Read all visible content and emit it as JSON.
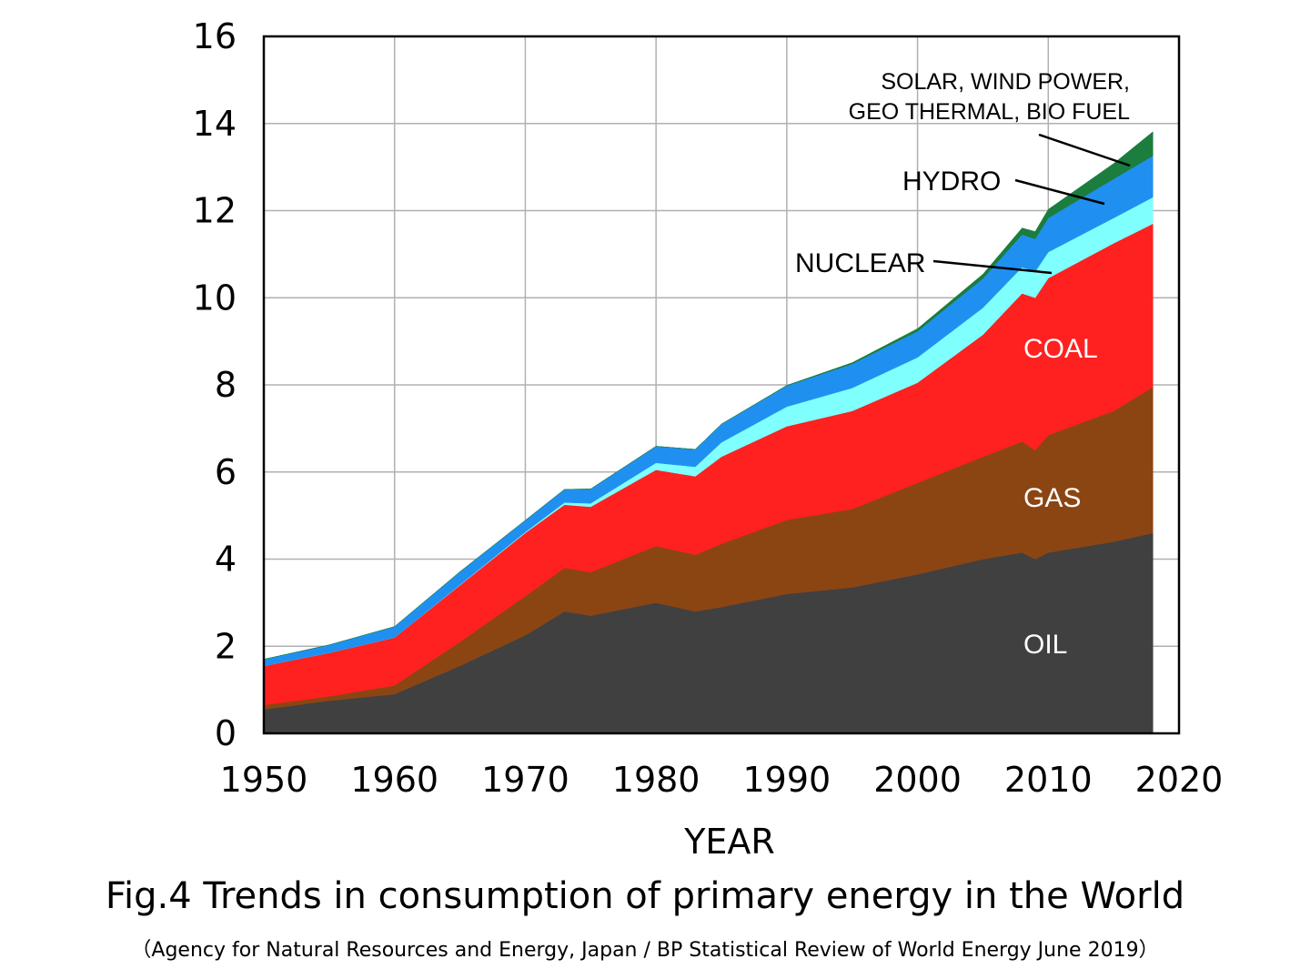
{
  "chart_data": {
    "type": "area",
    "stacked": true,
    "xlabel": "YEAR",
    "ylabel": "",
    "xlim": [
      1950,
      2020
    ],
    "ylim": [
      0,
      16
    ],
    "xticks": [
      1950,
      1960,
      1970,
      1980,
      1990,
      2000,
      2010,
      2020
    ],
    "yticks": [
      0,
      2,
      4,
      6,
      8,
      10,
      12,
      14,
      16
    ],
    "grid": true,
    "x": [
      1950,
      1955,
      1960,
      1965,
      1970,
      1973,
      1975,
      1980,
      1983,
      1985,
      1990,
      1995,
      2000,
      2005,
      2008,
      2009,
      2010,
      2015,
      2018
    ],
    "series": [
      {
        "name": "OIL",
        "color": "#404040",
        "values": [
          0.55,
          0.75,
          0.9,
          1.55,
          2.25,
          2.8,
          2.7,
          3.0,
          2.8,
          2.9,
          3.2,
          3.35,
          3.65,
          4.0,
          4.15,
          4.0,
          4.15,
          4.4,
          4.6
        ]
      },
      {
        "name": "GAS",
        "color": "#8B4513",
        "values": [
          0.1,
          0.1,
          0.2,
          0.55,
          0.9,
          1.0,
          1.0,
          1.3,
          1.3,
          1.45,
          1.7,
          1.8,
          2.1,
          2.35,
          2.55,
          2.5,
          2.7,
          3.0,
          3.35
        ]
      },
      {
        "name": "COAL",
        "color": "#FF2020",
        "values": [
          0.9,
          1.0,
          1.1,
          1.3,
          1.45,
          1.45,
          1.5,
          1.75,
          1.8,
          2.0,
          2.15,
          2.25,
          2.3,
          2.8,
          3.4,
          3.5,
          3.6,
          3.85,
          3.75
        ]
      },
      {
        "name": "NUCLEAR",
        "color": "#80FFFF",
        "values": [
          0.0,
          0.0,
          0.0,
          0.01,
          0.02,
          0.05,
          0.08,
          0.16,
          0.22,
          0.33,
          0.45,
          0.53,
          0.58,
          0.62,
          0.6,
          0.6,
          0.6,
          0.58,
          0.61
        ]
      },
      {
        "name": "HYDRO",
        "color": "#2090F0",
        "values": [
          0.15,
          0.18,
          0.25,
          0.3,
          0.27,
          0.3,
          0.33,
          0.38,
          0.4,
          0.42,
          0.48,
          0.55,
          0.6,
          0.67,
          0.75,
          0.75,
          0.78,
          0.9,
          0.95
        ]
      },
      {
        "name": "SOLAR, WIND POWER, GEO THERMAL, BIO FUEL",
        "color": "#1B7D3E",
        "values": [
          0.0,
          0.0,
          0.0,
          0.0,
          0.0,
          0.0,
          0.0,
          0.0,
          0.0,
          0.0,
          0.01,
          0.03,
          0.06,
          0.1,
          0.15,
          0.17,
          0.2,
          0.35,
          0.55
        ]
      }
    ],
    "labels": {
      "renew_line1": "SOLAR, WIND POWER,",
      "renew_line2": "GEO THERMAL, BIO FUEL",
      "hydro": "HYDRO",
      "nuclear": "NUCLEAR",
      "coal": "COAL",
      "gas": "GAS",
      "oil": "OIL"
    }
  },
  "caption": {
    "title": "Fig.4 Trends in consumption of primary energy in the World",
    "source": "（Agency for Natural Resources and Energy, Japan / BP Statistical Review of World Energy June 2019）"
  }
}
